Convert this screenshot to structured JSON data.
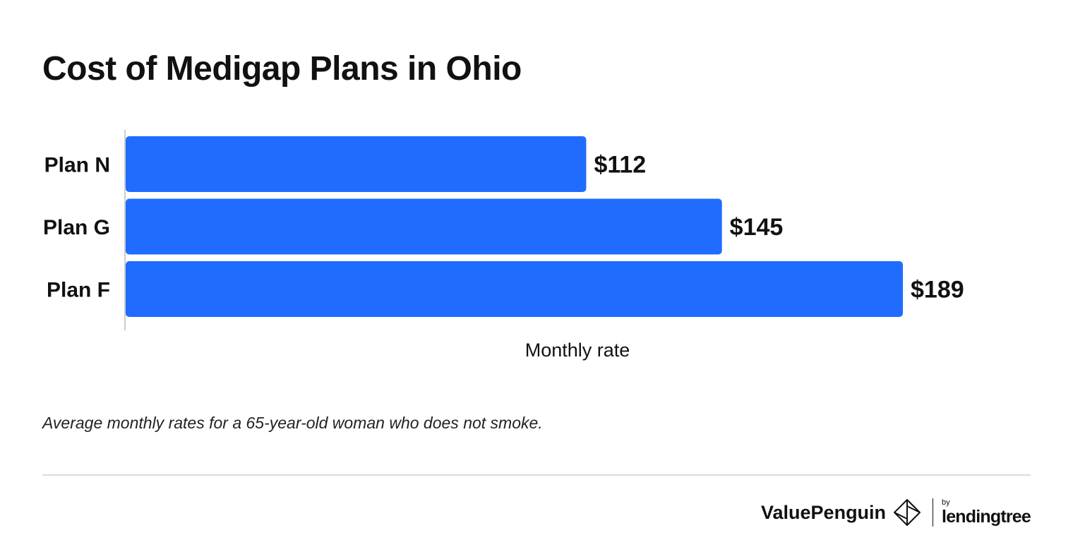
{
  "header": {
    "title": "Cost of Medigap Plans in Ohio"
  },
  "chart_data": {
    "type": "bar",
    "orientation": "horizontal",
    "title": "Cost of Medigap Plans in Ohio",
    "categories": [
      "Plan N",
      "Plan G",
      "Plan F"
    ],
    "values": [
      112,
      145,
      189
    ],
    "value_labels": [
      "$112",
      "$145",
      "$189"
    ],
    "xlabel": "Monthly rate",
    "ylabel": "",
    "xlim": [
      0,
      189
    ],
    "grid": false,
    "legend": "none",
    "bar_color": "#1f6cff"
  },
  "footer": {
    "note": "Average monthly rates for a 65-year-old woman who does not smoke.",
    "brand_name": "ValuePenguin",
    "brand_by": "by",
    "brand_partner": "lendingtree"
  },
  "icons": {
    "brand_mark": "valuepenguin-logo-icon"
  }
}
